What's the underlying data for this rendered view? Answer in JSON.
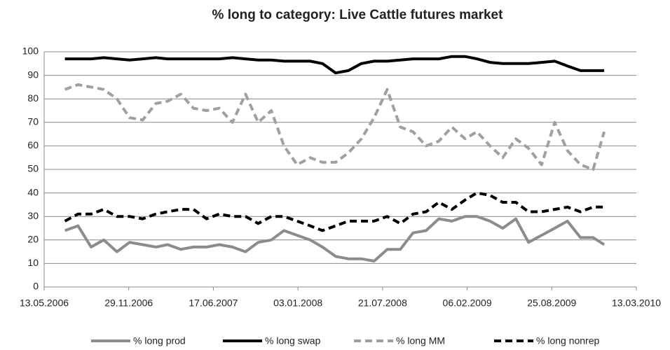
{
  "chart_data": {
    "type": "line",
    "title": "% long to category: Live Cattle futures market",
    "x": [
      "01.07.2006",
      "01.08.2006",
      "01.09.2006",
      "01.10.2006",
      "01.11.2006",
      "01.12.2006",
      "01.01.2007",
      "01.02.2007",
      "01.03.2007",
      "01.04.2007",
      "01.05.2007",
      "01.06.2007",
      "01.07.2007",
      "01.08.2007",
      "01.09.2007",
      "01.10.2007",
      "01.11.2007",
      "01.12.2007",
      "01.01.2008",
      "01.02.2008",
      "01.03.2008",
      "01.04.2008",
      "01.05.2008",
      "01.06.2008",
      "01.07.2008",
      "01.08.2008",
      "01.09.2008",
      "01.10.2008",
      "01.11.2008",
      "01.12.2008",
      "01.01.2009",
      "01.02.2009",
      "01.03.2009",
      "01.04.2009",
      "01.05.2009",
      "01.06.2009",
      "01.07.2009",
      "01.08.2009",
      "01.09.2009",
      "01.10.2009",
      "01.11.2009",
      "01.12.2009",
      "27.12.2009"
    ],
    "series": [
      {
        "name": "% long prod",
        "color": "#8c8c8c",
        "dash": false,
        "values": [
          24,
          26,
          17,
          20,
          15,
          19,
          18,
          17,
          18,
          16,
          17,
          17,
          18,
          17,
          15,
          19,
          20,
          24,
          22,
          20,
          17,
          13,
          12,
          12,
          11,
          16,
          16,
          23,
          24,
          29,
          28,
          30,
          30,
          28,
          25,
          29,
          19,
          22,
          25,
          28,
          21,
          21,
          18
        ]
      },
      {
        "name": "% long swap",
        "color": "#000000",
        "dash": false,
        "values": [
          97,
          97,
          97,
          97.5,
          97,
          96.5,
          97,
          97.5,
          97,
          97,
          97,
          97,
          97,
          97.5,
          97,
          96.5,
          96.5,
          96,
          96,
          96,
          95,
          91,
          92,
          95,
          96,
          96,
          96.5,
          97,
          97,
          97,
          98,
          98,
          97,
          95.5,
          95,
          95,
          95,
          95.5,
          96,
          94,
          92,
          92,
          92
        ]
      },
      {
        "name": "% long MM",
        "color": "#a0a0a0",
        "dash": true,
        "values": [
          84,
          86,
          85,
          84,
          80,
          72,
          71,
          78,
          79,
          82,
          76,
          75,
          76,
          70,
          82,
          70,
          75,
          60,
          52,
          55,
          53,
          53,
          57,
          63,
          72,
          84,
          68,
          66,
          60,
          62,
          68,
          63,
          66,
          60,
          55,
          63,
          59,
          52,
          70,
          58,
          52,
          50,
          66
        ]
      },
      {
        "name": "% long nonrep",
        "color": "#000000",
        "dash": true,
        "values": [
          28,
          31,
          31,
          33,
          30,
          30,
          29,
          31,
          32,
          33,
          33,
          29,
          31,
          30,
          30,
          27,
          30,
          30,
          28,
          26,
          24,
          26,
          28,
          28,
          28,
          30,
          27,
          31,
          32,
          36,
          33,
          37,
          40,
          39,
          36,
          36,
          32,
          32,
          33,
          34,
          32,
          34,
          34
        ]
      }
    ],
    "xlim": [
      "13.05.2006",
      "13.03.2010"
    ],
    "xticks": [
      "13.05.2006",
      "29.11.2006",
      "17.06.2007",
      "03.01.2008",
      "21.07.2008",
      "06.02.2009",
      "25.08.2009",
      "13.03.2010"
    ],
    "ylim": [
      0,
      100
    ],
    "yticks": [
      0,
      10,
      20,
      30,
      40,
      50,
      60,
      70,
      80,
      90,
      100
    ],
    "grid": true,
    "legend": "bottom"
  }
}
